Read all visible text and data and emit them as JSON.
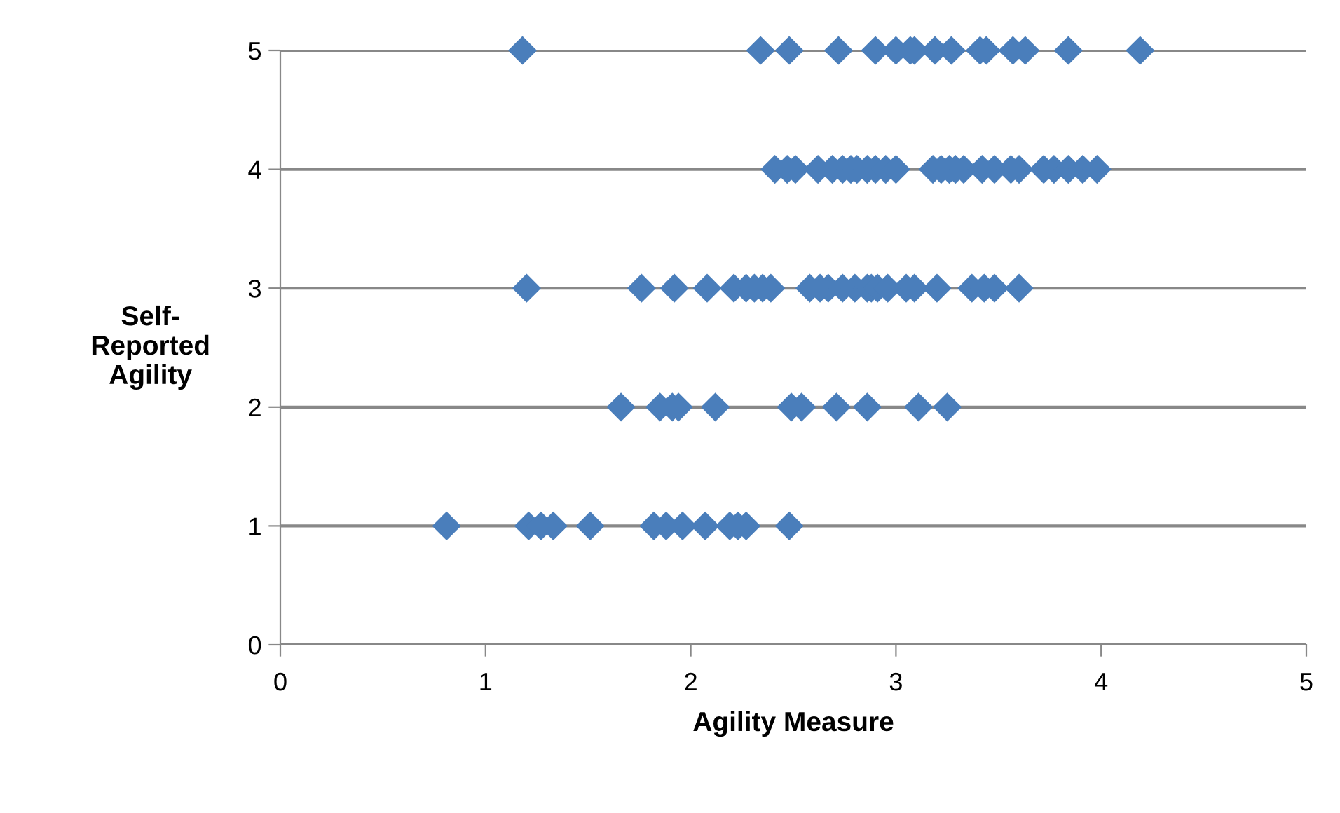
{
  "chart_data": {
    "type": "scatter",
    "xlabel": "Agility Measure",
    "ylabel": "Self-\nReported\nAgility",
    "x": [
      1.18,
      2.34,
      2.48,
      2.72,
      2.9,
      3.0,
      3.07,
      3.09,
      3.19,
      3.27,
      3.41,
      3.44,
      3.57,
      3.63,
      3.84,
      4.19,
      2.41,
      2.47,
      2.51,
      2.62,
      2.69,
      2.74,
      2.78,
      2.81,
      2.86,
      2.9,
      2.95,
      3.0,
      3.18,
      3.22,
      3.26,
      3.29,
      3.33,
      3.42,
      3.48,
      3.56,
      3.6,
      3.72,
      3.77,
      3.84,
      3.91,
      3.98,
      1.2,
      1.76,
      1.92,
      2.08,
      2.21,
      2.27,
      2.31,
      2.35,
      2.39,
      2.58,
      2.63,
      2.67,
      2.74,
      2.8,
      2.86,
      2.88,
      2.91,
      2.96,
      3.05,
      3.09,
      3.2,
      3.37,
      3.43,
      3.48,
      3.6,
      1.66,
      1.85,
      1.91,
      1.94,
      2.12,
      2.49,
      2.54,
      2.71,
      2.86,
      3.11,
      3.25,
      0.81,
      1.21,
      1.27,
      1.33,
      1.51,
      1.82,
      1.88,
      1.96,
      2.07,
      2.19,
      2.23,
      2.27,
      2.48
    ],
    "values": [
      5,
      5,
      5,
      5,
      5,
      5,
      5,
      5,
      5,
      5,
      5,
      5,
      5,
      5,
      5,
      5,
      4,
      4,
      4,
      4,
      4,
      4,
      4,
      4,
      4,
      4,
      4,
      4,
      4,
      4,
      4,
      4,
      4,
      4,
      4,
      4,
      4,
      4,
      4,
      4,
      4,
      4,
      3,
      3,
      3,
      3,
      3,
      3,
      3,
      3,
      3,
      3,
      3,
      3,
      3,
      3,
      3,
      3,
      3,
      3,
      3,
      3,
      3,
      3,
      3,
      3,
      3,
      2,
      2,
      2,
      2,
      2,
      2,
      2,
      2,
      2,
      2,
      2,
      1,
      1,
      1,
      1,
      1,
      1,
      1,
      1,
      1,
      1,
      1,
      1,
      1
    ],
    "color": "#4a7ebb",
    "marker": "diamond",
    "xlim": [
      0,
      5
    ],
    "xticks": [
      0,
      1,
      2,
      3,
      4,
      5
    ],
    "ylim": [
      0,
      5
    ],
    "yticks": [
      0,
      1,
      2,
      3,
      4,
      5
    ],
    "grid": "y",
    "legend": false
  }
}
